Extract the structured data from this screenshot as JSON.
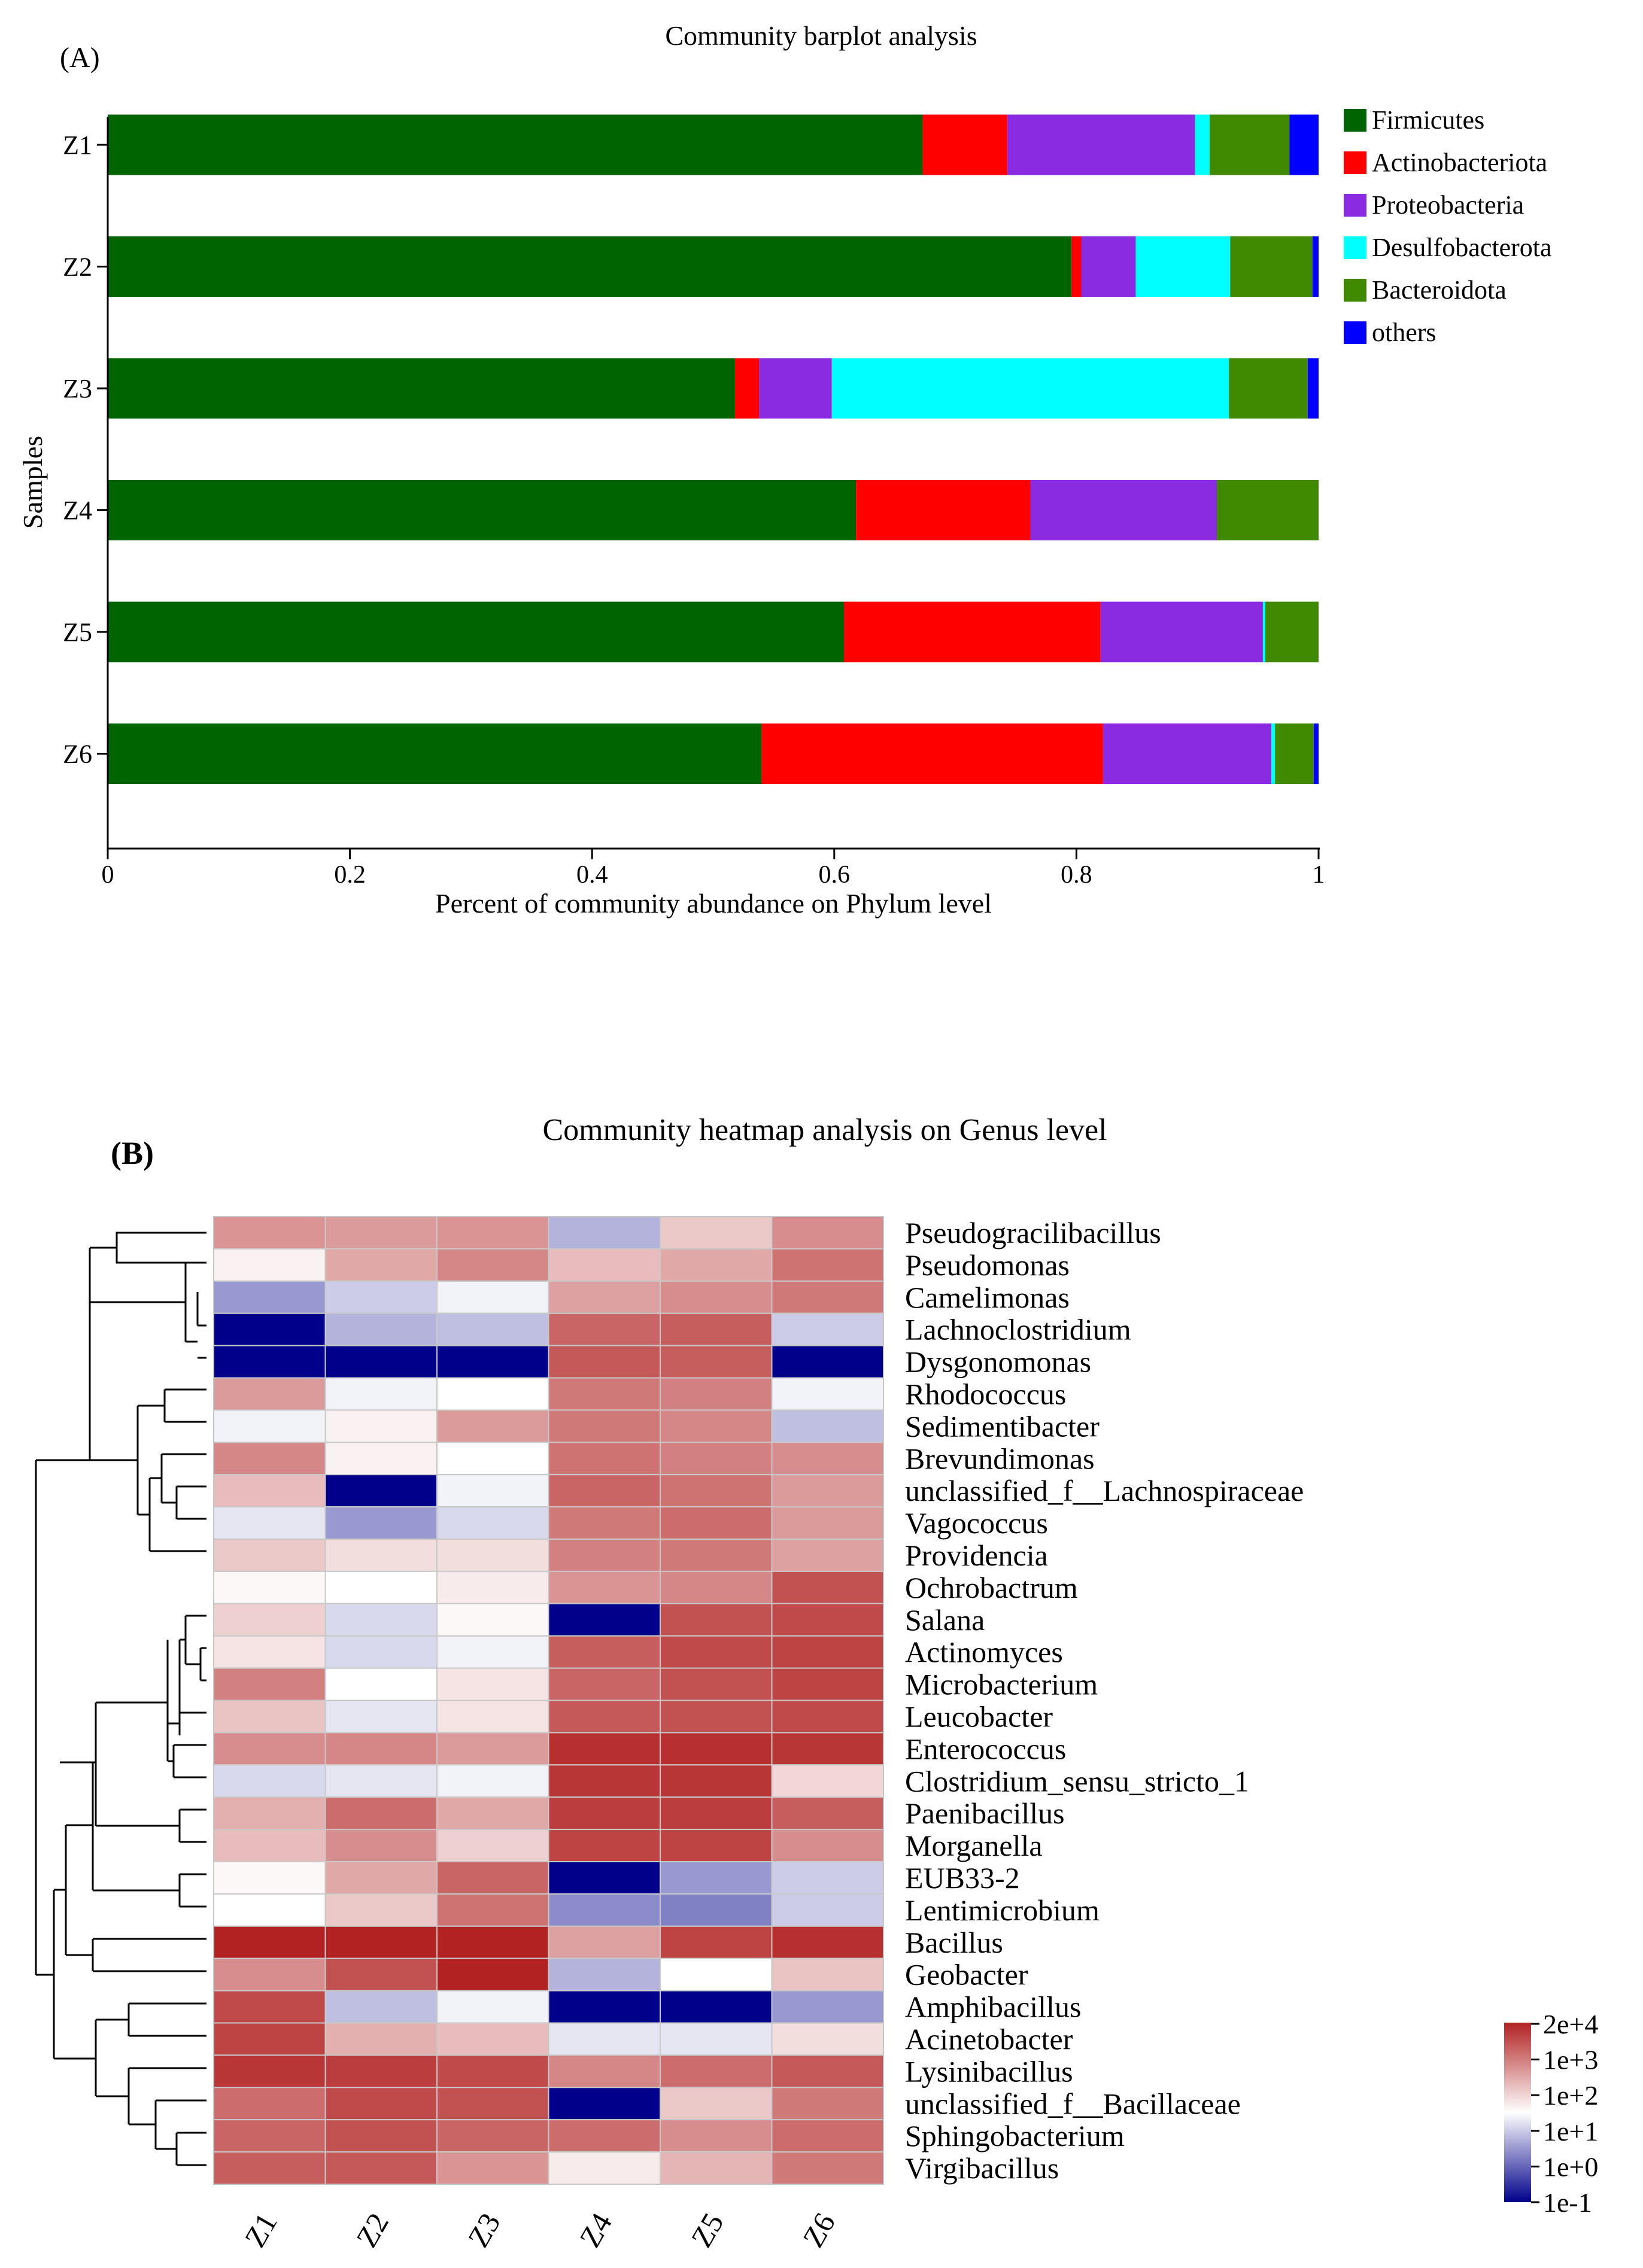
{
  "chart_data": [
    {
      "type": "bar",
      "orientation": "horizontal",
      "stacked": true,
      "panel_label": "(A)",
      "title": "Community barplot analysis",
      "xlabel": "Percent of community abundance on Phylum level",
      "ylabel": "Samples",
      "xlim": [
        0,
        1
      ],
      "xticks": [
        "0",
        "0.2",
        "0.4",
        "0.6",
        "0.8",
        "1"
      ],
      "tick_values": [
        0,
        0.2,
        0.4,
        0.6,
        0.8,
        1
      ],
      "legend_position": "top-right",
      "grid": false,
      "categories": [
        "Z1",
        "Z2",
        "Z3",
        "Z4",
        "Z5",
        "Z6"
      ],
      "series": [
        {
          "name": "Firmicutes",
          "color": "#006400",
          "values": [
            0.673,
            0.796,
            0.518,
            0.618,
            0.608,
            0.54
          ]
        },
        {
          "name": "Actinobacteriota",
          "color": "#ff0000",
          "values": [
            0.07,
            0.008,
            0.02,
            0.144,
            0.212,
            0.282
          ]
        },
        {
          "name": "Proteobacteria",
          "color": "#8a2be2",
          "values": [
            0.155,
            0.045,
            0.06,
            0.154,
            0.134,
            0.139
          ]
        },
        {
          "name": "Desulfobacterota",
          "color": "#00ffff",
          "values": [
            0.012,
            0.078,
            0.328,
            0.0,
            0.002,
            0.003
          ]
        },
        {
          "name": "Bacteroidota",
          "color": "#3f8a00",
          "values": [
            0.066,
            0.068,
            0.065,
            0.084,
            0.044,
            0.032
          ]
        },
        {
          "name": "others",
          "color": "#0000ff",
          "values": [
            0.024,
            0.005,
            0.009,
            0.0,
            0.0,
            0.004
          ]
        }
      ]
    },
    {
      "type": "heatmap",
      "panel_label": "(B)",
      "title": "Community heatmap analysis on Genus level",
      "columns": [
        "Z1",
        "Z2",
        "Z3",
        "Z4",
        "Z5",
        "Z6"
      ],
      "rows": [
        "Pseudogracilibacillus",
        "Pseudomonas",
        "Camelimonas",
        "Lachnoclostridium",
        "Dysgonomonas",
        "Rhodococcus",
        "Sedimentibacter",
        "Brevundimonas",
        "unclassified_f__Lachnospiraceae",
        "Vagococcus",
        "Providencia",
        "Ochrobactrum",
        "Salana",
        "Actinomyces",
        "Microbacterium",
        "Leucobacter",
        "Enterococcus",
        "Clostridium_sensu_stricto_1",
        "Paenibacillus",
        "Morganella",
        "EUB33-2",
        "Lentimicrobium",
        "Bacillus",
        "Geobacter",
        "Amphibacillus",
        "Acinetobacter",
        "Lysinibacillus",
        "unclassified_f__Bacillaceae",
        "Sphingobacterium",
        "Virgibacillus"
      ],
      "log10_values": [
        [
          2.6,
          2.5,
          2.6,
          0.4,
          1.8,
          2.7
        ],
        [
          1.2,
          2.3,
          2.8,
          2.0,
          2.3,
          3.1
        ],
        [
          0.2,
          0.6,
          0.9,
          2.4,
          2.7,
          3.0
        ],
        [
          -1.0,
          0.4,
          0.5,
          3.3,
          3.4,
          0.6
        ],
        [
          -1.0,
          -1.0,
          -1.0,
          3.5,
          3.4,
          -1.0
        ],
        [
          2.5,
          0.9,
          1.0,
          3.0,
          2.9,
          0.9
        ],
        [
          0.9,
          1.2,
          2.5,
          3.0,
          2.8,
          0.5
        ],
        [
          2.8,
          1.2,
          1.0,
          3.1,
          2.9,
          2.7
        ],
        [
          2.0,
          -1.0,
          0.9,
          3.3,
          3.1,
          2.5
        ],
        [
          0.8,
          0.2,
          0.7,
          3.0,
          3.2,
          2.5
        ],
        [
          1.8,
          1.5,
          1.5,
          2.9,
          3.0,
          2.4
        ],
        [
          1.1,
          1.0,
          1.3,
          2.6,
          2.8,
          3.6
        ],
        [
          1.7,
          0.7,
          1.1,
          -1.0,
          3.6,
          3.7
        ],
        [
          1.4,
          0.7,
          0.9,
          3.4,
          3.7,
          3.8
        ],
        [
          2.9,
          1.0,
          1.4,
          3.3,
          3.6,
          3.8
        ],
        [
          1.9,
          0.8,
          1.4,
          3.5,
          3.6,
          3.7
        ],
        [
          2.7,
          2.8,
          2.5,
          4.1,
          4.1,
          4.0
        ],
        [
          0.7,
          0.8,
          0.9,
          4.0,
          4.0,
          1.6
        ],
        [
          2.2,
          3.2,
          2.3,
          3.9,
          3.9,
          3.4
        ],
        [
          2.0,
          2.7,
          1.7,
          3.8,
          3.8,
          2.7
        ],
        [
          1.1,
          2.3,
          3.3,
          -1.0,
          0.2,
          0.6
        ],
        [
          1.0,
          1.8,
          3.1,
          0.1,
          0.0,
          0.6
        ],
        [
          4.3,
          4.3,
          4.3,
          2.4,
          3.8,
          4.1
        ],
        [
          2.7,
          3.6,
          4.3,
          0.4,
          1.0,
          1.9
        ],
        [
          3.7,
          0.5,
          0.9,
          -1.0,
          -1.0,
          0.2
        ],
        [
          3.8,
          2.2,
          2.0,
          0.8,
          0.8,
          1.5
        ],
        [
          4.0,
          3.9,
          3.7,
          2.8,
          3.2,
          3.5
        ],
        [
          3.2,
          3.7,
          3.6,
          -1.0,
          1.8,
          3.0
        ],
        [
          3.3,
          3.6,
          3.3,
          3.2,
          2.7,
          3.2
        ],
        [
          3.4,
          3.5,
          2.6,
          1.3,
          2.1,
          3.0
        ]
      ],
      "colorbar": {
        "labels": [
          "2e+4",
          "1e+3",
          "1e+2",
          "1e+1",
          "1e+0",
          "1e-1"
        ],
        "low_color": "#00008b",
        "mid_color": "#ffffff",
        "high_color": "#b22222"
      }
    }
  ]
}
